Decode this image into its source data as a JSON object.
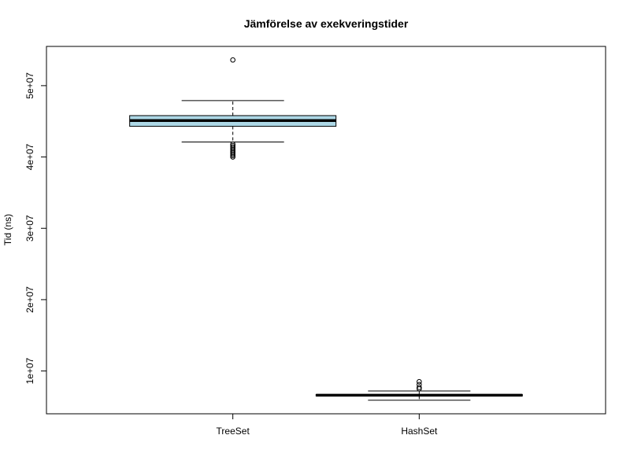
{
  "chart_data": {
    "type": "boxplot",
    "title": "Jämförelse av exekveringstider",
    "xlabel": "",
    "ylabel": "Tid (ns)",
    "ylim": [
      4000000,
      55500000
    ],
    "y_ticks": [
      10000000,
      20000000,
      30000000,
      40000000,
      50000000
    ],
    "y_tick_labels": [
      "1e+07",
      "2e+07",
      "3e+07",
      "4e+07",
      "5e+07"
    ],
    "categories": [
      "TreeSet",
      "HashSet"
    ],
    "grid": false,
    "colors": {
      "box_fill": [
        "#add8e6",
        "#add8e6"
      ],
      "line": "#000000",
      "background": "#ffffff"
    },
    "boxes": [
      {
        "category": "TreeSet",
        "whisker_low": 42100000,
        "q1": 44300000,
        "median": 45100000,
        "q3": 45800000,
        "whisker_high": 47900000,
        "outliers": [
          53600000,
          41800000,
          41600000,
          41400000,
          41200000,
          41000000,
          40800000,
          40600000,
          40400000,
          40200000,
          40000000
        ]
      },
      {
        "category": "HashSet",
        "whisker_low": 5900000,
        "q1": 6500000,
        "median": 6600000,
        "q3": 6700000,
        "whisker_high": 7200000,
        "outliers": [
          7500000,
          7700000,
          8100000,
          8500000
        ]
      }
    ]
  }
}
